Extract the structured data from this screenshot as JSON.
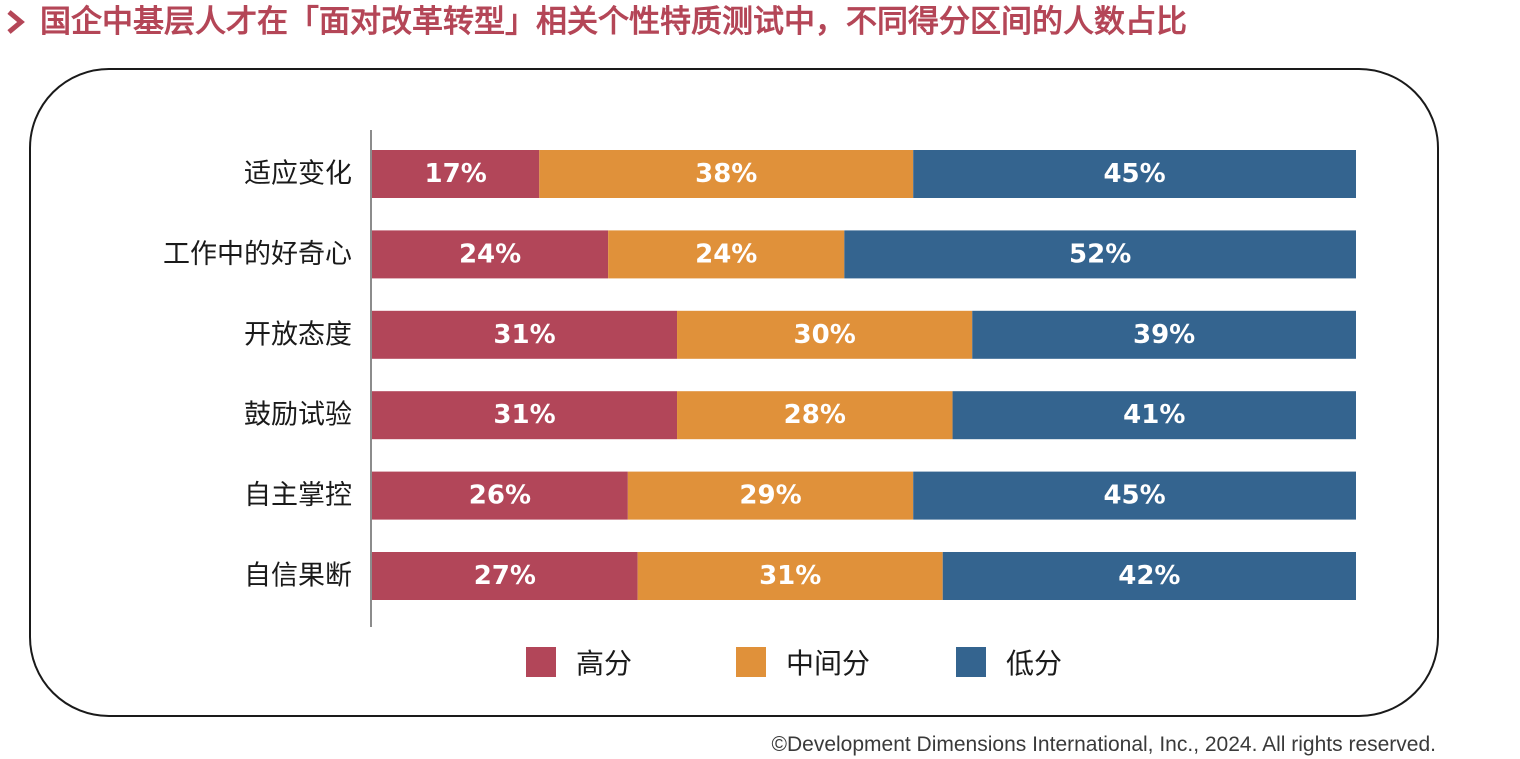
{
  "title": "国企中基层人才在「面对改革转型」相关个性特质测试中，不同得分区间的人数占比",
  "copyright": "©Development Dimensions International, Inc., 2024. All rights reserved.",
  "colors": {
    "title": "#b44657",
    "high": "#b24659",
    "mid": "#e0913a",
    "low": "#34648f"
  },
  "legend": [
    {
      "label": "高分",
      "color": "#b24659"
    },
    {
      "label": "中间分",
      "color": "#e0913a"
    },
    {
      "label": "低分",
      "color": "#34648f"
    }
  ],
  "chart_data": {
    "type": "bar",
    "orientation": "horizontal",
    "stacked": true,
    "xlim": [
      0,
      100
    ],
    "categories": [
      "适应变化",
      "工作中的好奇心",
      "开放态度",
      "鼓励试验",
      "自主掌控",
      "自信果断"
    ],
    "series": [
      {
        "name": "高分",
        "values": [
          17,
          24,
          31,
          31,
          26,
          27
        ],
        "labels": [
          "17%",
          "24%",
          "31%",
          "31%",
          "26%",
          "27%"
        ]
      },
      {
        "name": "中间分",
        "values": [
          38,
          24,
          30,
          28,
          29,
          31
        ],
        "labels": [
          "38%",
          "24%",
          "30%",
          "28%",
          "29%",
          "31%"
        ]
      },
      {
        "name": "低分",
        "values": [
          45,
          52,
          39,
          41,
          45,
          42
        ],
        "labels": [
          "45%",
          "52%",
          "39%",
          "41%",
          "45%",
          "42%"
        ]
      }
    ],
    "legend_position": "bottom",
    "grid": false
  }
}
